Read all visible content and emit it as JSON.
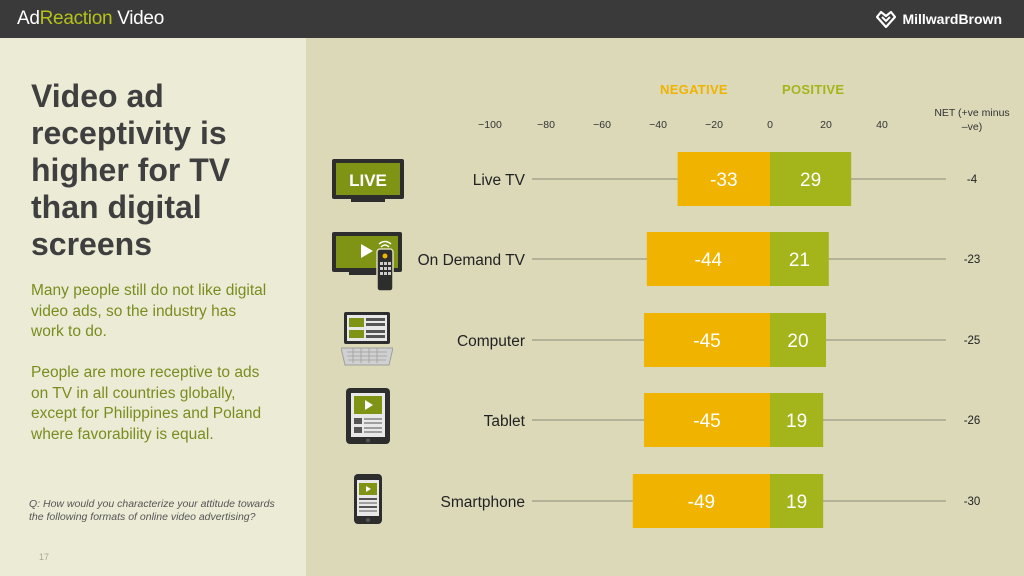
{
  "header": {
    "title_part1": "Ad",
    "title_part2": "Reaction",
    "title_part3": " Video",
    "brand": "MillwardBrown"
  },
  "left": {
    "headline": "Video ad receptivity is higher for TV than digital screens",
    "paragraph1": "Many people still do not like digital video ads, so the industry has work to do.",
    "paragraph2": "People are more receptive to ads on TV in all countries globally, except for Philippines and Poland where favorability is equal.",
    "question": "Q:  How would you characterize your attitude towards the following formats of online video advertising?",
    "page_number": "17"
  },
  "icons": {
    "live_tv_text": "LIVE"
  },
  "chart_data": {
    "type": "bar",
    "orientation": "horizontal-diverging",
    "legend": {
      "negative": "NEGATIVE",
      "positive": "POSITIVE"
    },
    "net_label": "NET (+ve minus –ve)",
    "xlim": [
      -100,
      40
    ],
    "ticks": [
      -100,
      -80,
      -60,
      -40,
      -20,
      0,
      20,
      40
    ],
    "tick_labels": [
      "−100",
      "−80",
      "−60",
      "−40",
      "−20",
      "0",
      "20",
      "40"
    ],
    "categories": [
      "Live TV",
      "On Demand TV",
      "Computer",
      "Tablet",
      "Smartphone"
    ],
    "series": [
      {
        "name": "NEGATIVE",
        "values": [
          -33,
          -44,
          -45,
          -45,
          -49
        ],
        "labels": [
          "-33",
          "-44",
          "-45",
          "-45",
          "-49"
        ],
        "color": "#f0b400"
      },
      {
        "name": "POSITIVE",
        "values": [
          29,
          21,
          20,
          19,
          19
        ],
        "labels": [
          "29",
          "21",
          "20",
          "19",
          "19"
        ],
        "color": "#a3b51a"
      }
    ],
    "net": [
      -4,
      -23,
      -25,
      -26,
      -30
    ],
    "net_labels": [
      "-4",
      "-23",
      "-25",
      "-26",
      "-30"
    ],
    "grid": false
  }
}
